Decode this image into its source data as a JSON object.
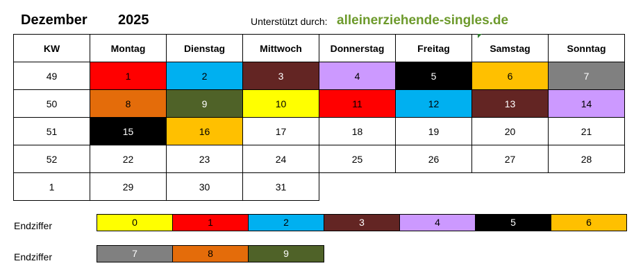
{
  "header": {
    "month": "Dezember",
    "year": "2025",
    "support_label": "Unterstützt durch:",
    "brand": "alleinerziehende-singles.de"
  },
  "calendar": {
    "headers": [
      "KW",
      "Montag",
      "Dienstag",
      "Mittwoch",
      "Donnerstag",
      "Freitag",
      "Samstag",
      "Sonntag"
    ],
    "rows": [
      {
        "kw": "49",
        "days": [
          "1",
          "2",
          "3",
          "4",
          "5",
          "6",
          "7"
        ]
      },
      {
        "kw": "50",
        "days": [
          "8",
          "9",
          "10",
          "11",
          "12",
          "13",
          "14"
        ]
      },
      {
        "kw": "51",
        "days": [
          "15",
          "16",
          "17",
          "18",
          "19",
          "20",
          "21"
        ]
      },
      {
        "kw": "52",
        "days": [
          "22",
          "23",
          "24",
          "25",
          "26",
          "27",
          "28"
        ]
      },
      {
        "kw": "1",
        "days": [
          "29",
          "30",
          "31",
          "",
          "",
          "",
          ""
        ]
      }
    ]
  },
  "legend": {
    "label1": "Endziffer",
    "label2": "Endziffer",
    "digits": [
      "0",
      "1",
      "2",
      "3",
      "4",
      "5",
      "6",
      "7",
      "8",
      "9"
    ]
  },
  "colors": {
    "digit_0": "#ffff00",
    "digit_1": "#ff0000",
    "digit_2": "#00b0f0",
    "digit_3": "#632523",
    "digit_4": "#cc99ff",
    "digit_5": "#000000",
    "digit_6": "#ffc000",
    "digit_7": "#808080",
    "digit_8": "#e46c0a",
    "digit_9": "#4f6228",
    "brand": "#6d9a2c"
  }
}
